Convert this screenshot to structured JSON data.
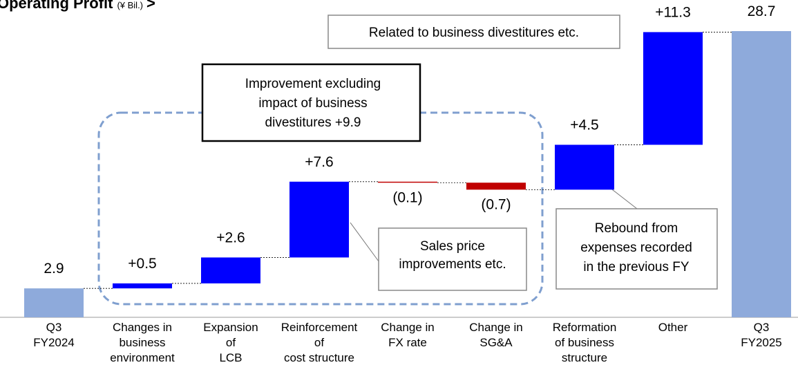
{
  "chart_data": {
    "type": "waterfall",
    "title": "Operating Profit",
    "unit": "(¥ Bil.)",
    "title_suffix": ">",
    "categories": [
      "Q3\nFY2024",
      "Changes in\nbusiness\nenvironment",
      "Expansion\nof\nLCB",
      "Reinforcement\nof\ncost structure",
      "Change in\nFX rate",
      "Change in\nSG&A",
      "Reformation\nof business\nstructure",
      "Other",
      "Q3\nFY2025"
    ],
    "values": [
      2.9,
      0.5,
      2.6,
      7.6,
      -0.1,
      -0.7,
      4.5,
      11.3,
      28.7
    ],
    "value_labels": [
      "2.9",
      "+0.5",
      "+2.6",
      "+7.6",
      "(0.1)",
      "(0.7)",
      "+4.5",
      "+11.3",
      "28.7"
    ],
    "measure": [
      "total",
      "relative",
      "relative",
      "relative",
      "relative",
      "relative",
      "relative",
      "relative",
      "total"
    ],
    "colors": {
      "total": "#8eaadb",
      "increase": "#0000ff",
      "decrease": "#c00000"
    },
    "annotations": [
      {
        "text": "Related to business divestitures etc."
      },
      {
        "text": "Improvement excluding\nimpact of business\ndivestitures +9.9"
      },
      {
        "text": "Sales price\nimprovements etc."
      },
      {
        "text": "Rebound from\nexpenses recorded\nin the previous FY"
      }
    ]
  }
}
